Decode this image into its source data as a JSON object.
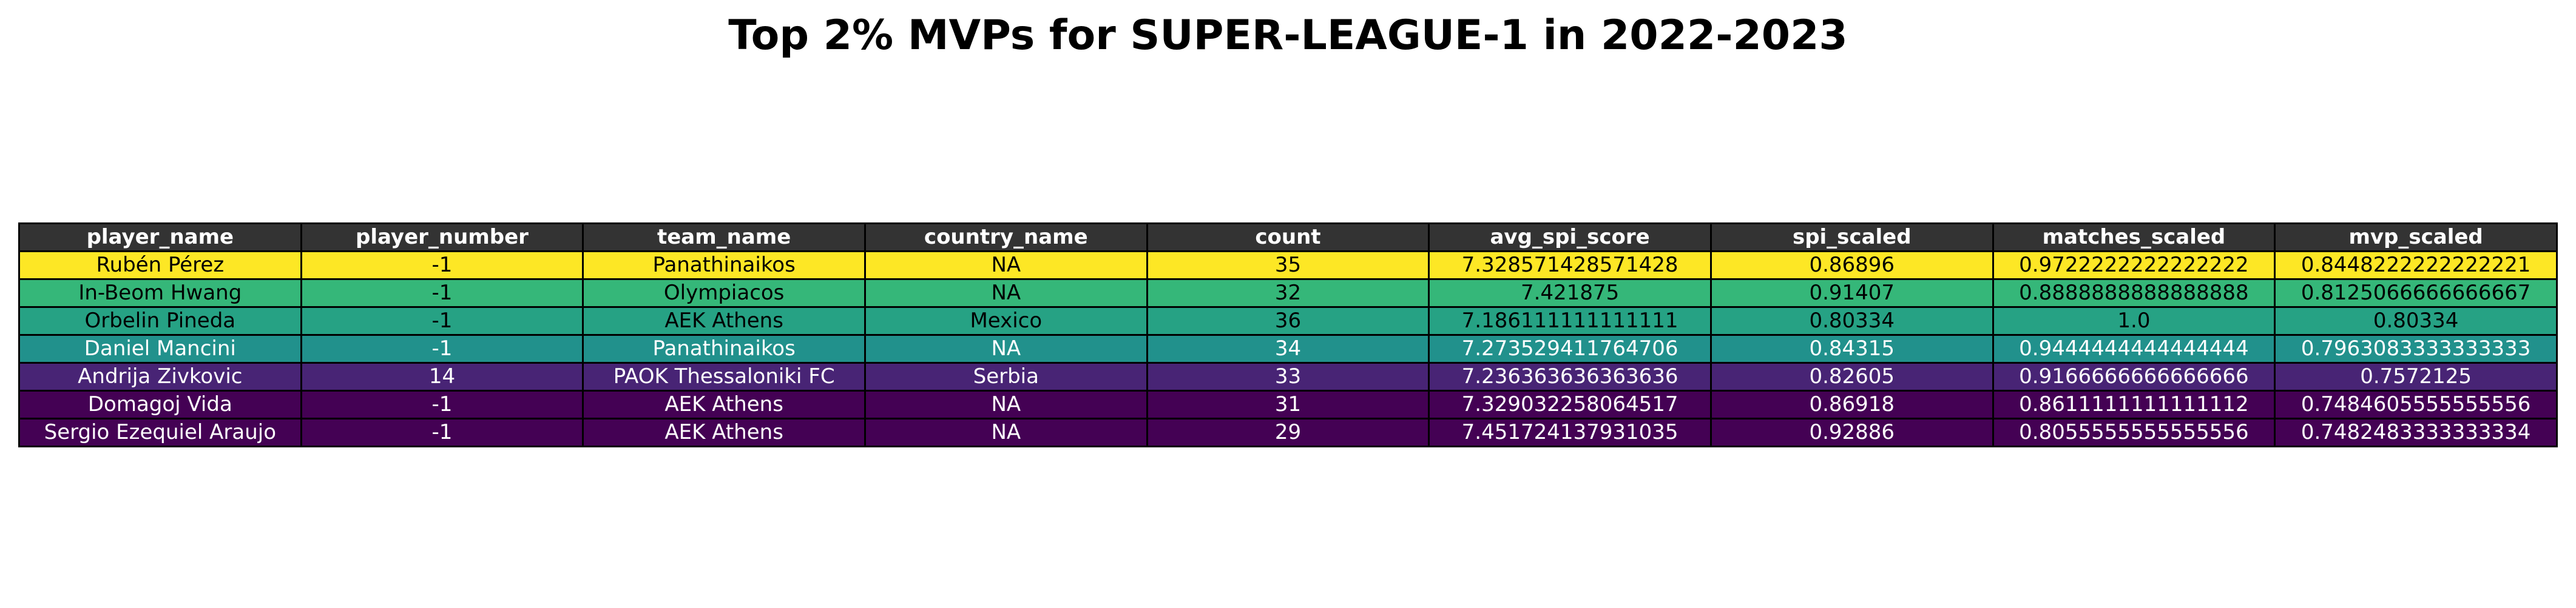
{
  "chart_data": {
    "type": "table",
    "title": "Top 2% MVPs for SUPER-LEAGUE-1 in 2022-2023",
    "columns": [
      "player_name",
      "player_number",
      "team_name",
      "country_name",
      "count",
      "avg_spi_score",
      "spi_scaled",
      "matches_scaled",
      "mvp_scaled"
    ],
    "rows": [
      {
        "player_name": "Rubén Pérez",
        "player_number": "-1",
        "team_name": "Panathinaikos",
        "country_name": "NA",
        "count": "35",
        "avg_spi_score": "7.328571428571428",
        "spi_scaled": "0.86896",
        "matches_scaled": "0.9722222222222222",
        "mvp_scaled": "0.8448222222222221",
        "color": "#fde725",
        "text_color": "#000000"
      },
      {
        "player_name": "In-Beom Hwang",
        "player_number": "-1",
        "team_name": "Olympiacos",
        "country_name": "NA",
        "count": "32",
        "avg_spi_score": "7.421875",
        "spi_scaled": "0.91407",
        "matches_scaled": "0.8888888888888888",
        "mvp_scaled": "0.8125066666666667",
        "color": "#35b779",
        "text_color": "#000000"
      },
      {
        "player_name": "Orbelin Pineda",
        "player_number": "-1",
        "team_name": "AEK Athens",
        "country_name": "Mexico",
        "count": "36",
        "avg_spi_score": "7.186111111111111",
        "spi_scaled": "0.80334",
        "matches_scaled": "1.0",
        "mvp_scaled": "0.80334",
        "color": "#26a284",
        "text_color": "#000000"
      },
      {
        "player_name": "Daniel Mancini",
        "player_number": "-1",
        "team_name": "Panathinaikos",
        "country_name": "NA",
        "count": "34",
        "avg_spi_score": "7.273529411764706",
        "spi_scaled": "0.84315",
        "matches_scaled": "0.9444444444444444",
        "mvp_scaled": "0.7963083333333333",
        "color": "#21918c",
        "text_color": "#ffffff"
      },
      {
        "player_name": "Andrija Zivkovic",
        "player_number": "14",
        "team_name": "PAOK Thessaloniki FC",
        "country_name": "Serbia",
        "count": "33",
        "avg_spi_score": "7.236363636363636",
        "spi_scaled": "0.82605",
        "matches_scaled": "0.9166666666666666",
        "mvp_scaled": "0.7572125",
        "color": "#482475",
        "text_color": "#ffffff"
      },
      {
        "player_name": "Domagoj Vida",
        "player_number": "-1",
        "team_name": "AEK Athens",
        "country_name": "NA",
        "count": "31",
        "avg_spi_score": "7.329032258064517",
        "spi_scaled": "0.86918",
        "matches_scaled": "0.8611111111111112",
        "mvp_scaled": "0.7484605555555556",
        "color": "#440154",
        "text_color": "#ffffff"
      },
      {
        "player_name": "Sergio Ezequiel Araujo",
        "player_number": "-1",
        "team_name": "AEK Athens",
        "country_name": "NA",
        "count": "29",
        "avg_spi_score": "7.451724137931035",
        "spi_scaled": "0.92886",
        "matches_scaled": "0.8055555555555556",
        "mvp_scaled": "0.7482483333333334",
        "color": "#440154",
        "text_color": "#ffffff"
      }
    ],
    "header_color": "#333333",
    "header_text_color": "#ffffff"
  }
}
